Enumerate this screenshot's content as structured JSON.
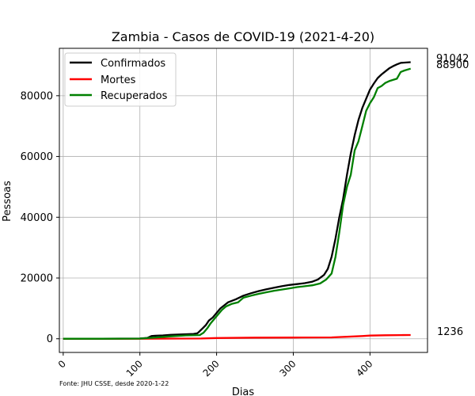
{
  "chart_data": {
    "type": "line",
    "title": "Zambia - Casos de COVID-19 (2021-4-20)",
    "xlabel": "Dias",
    "ylabel": "Pessoas",
    "source_note": "Fonte: JHU CSSE, desde 2020-1-22",
    "xlim": [
      -5,
      475
    ],
    "ylim": [
      -4500,
      95600
    ],
    "x_ticks": [
      0,
      100,
      200,
      300,
      400
    ],
    "y_ticks": [
      0,
      20000,
      40000,
      60000,
      80000
    ],
    "grid": true,
    "legend_position": "top-left",
    "end_labels": [
      "91042",
      "88900",
      "1236"
    ],
    "series": [
      {
        "name": "Confirmados",
        "color": "#000000",
        "points": [
          [
            0,
            0
          ],
          [
            50,
            0
          ],
          [
            100,
            100
          ],
          [
            110,
            300
          ],
          [
            115,
            900
          ],
          [
            120,
            1000
          ],
          [
            130,
            1100
          ],
          [
            140,
            1300
          ],
          [
            150,
            1400
          ],
          [
            160,
            1500
          ],
          [
            170,
            1600
          ],
          [
            175,
            1800
          ],
          [
            178,
            2500
          ],
          [
            182,
            3500
          ],
          [
            186,
            4500
          ],
          [
            190,
            6000
          ],
          [
            195,
            7000
          ],
          [
            200,
            8500
          ],
          [
            205,
            10000
          ],
          [
            210,
            11000
          ],
          [
            215,
            12000
          ],
          [
            225,
            13000
          ],
          [
            235,
            14200
          ],
          [
            245,
            15000
          ],
          [
            255,
            15700
          ],
          [
            265,
            16300
          ],
          [
            275,
            16800
          ],
          [
            285,
            17300
          ],
          [
            295,
            17700
          ],
          [
            305,
            18000
          ],
          [
            315,
            18300
          ],
          [
            325,
            18800
          ],
          [
            332,
            19500
          ],
          [
            340,
            21000
          ],
          [
            345,
            23000
          ],
          [
            350,
            27000
          ],
          [
            355,
            33000
          ],
          [
            360,
            40000
          ],
          [
            365,
            46000
          ],
          [
            370,
            54000
          ],
          [
            375,
            61000
          ],
          [
            380,
            67000
          ],
          [
            385,
            72000
          ],
          [
            390,
            76000
          ],
          [
            395,
            79000
          ],
          [
            400,
            82000
          ],
          [
            405,
            84000
          ],
          [
            410,
            85800
          ],
          [
            415,
            87000
          ],
          [
            420,
            88000
          ],
          [
            425,
            89000
          ],
          [
            430,
            89700
          ],
          [
            435,
            90300
          ],
          [
            440,
            90800
          ],
          [
            453,
            91042
          ]
        ]
      },
      {
        "name": "Mortes",
        "color": "#ff0000",
        "points": [
          [
            0,
            0
          ],
          [
            100,
            0
          ],
          [
            150,
            50
          ],
          [
            180,
            100
          ],
          [
            200,
            250
          ],
          [
            250,
            380
          ],
          [
            300,
            400
          ],
          [
            350,
            450
          ],
          [
            370,
            650
          ],
          [
            390,
            900
          ],
          [
            400,
            1050
          ],
          [
            420,
            1150
          ],
          [
            440,
            1200
          ],
          [
            453,
            1236
          ]
        ]
      },
      {
        "name": "Recuperados",
        "color": "#008000",
        "points": [
          [
            0,
            0
          ],
          [
            50,
            0
          ],
          [
            100,
            50
          ],
          [
            120,
            400
          ],
          [
            140,
            800
          ],
          [
            160,
            1100
          ],
          [
            178,
            1200
          ],
          [
            183,
            2000
          ],
          [
            188,
            3500
          ],
          [
            192,
            5000
          ],
          [
            197,
            6500
          ],
          [
            202,
            8000
          ],
          [
            207,
            9500
          ],
          [
            212,
            10600
          ],
          [
            220,
            11500
          ],
          [
            228,
            12000
          ],
          [
            235,
            13500
          ],
          [
            245,
            14200
          ],
          [
            255,
            14800
          ],
          [
            265,
            15300
          ],
          [
            275,
            15800
          ],
          [
            285,
            16200
          ],
          [
            295,
            16600
          ],
          [
            305,
            17000
          ],
          [
            315,
            17300
          ],
          [
            325,
            17600
          ],
          [
            335,
            18200
          ],
          [
            343,
            19500
          ],
          [
            350,
            21500
          ],
          [
            355,
            27000
          ],
          [
            360,
            35000
          ],
          [
            365,
            44000
          ],
          [
            370,
            50000
          ],
          [
            375,
            54000
          ],
          [
            380,
            62000
          ],
          [
            385,
            65000
          ],
          [
            390,
            70000
          ],
          [
            395,
            75000
          ],
          [
            400,
            77500
          ],
          [
            405,
            79500
          ],
          [
            410,
            82500
          ],
          [
            415,
            83200
          ],
          [
            420,
            84200
          ],
          [
            425,
            84800
          ],
          [
            430,
            85200
          ],
          [
            435,
            85600
          ],
          [
            440,
            87800
          ],
          [
            445,
            88300
          ],
          [
            453,
            88900
          ]
        ]
      }
    ]
  }
}
